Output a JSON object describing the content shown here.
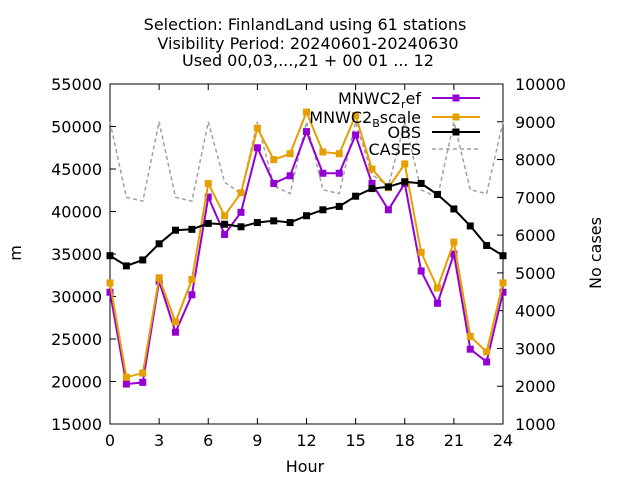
{
  "chart_data": {
    "type": "line",
    "title_lines": [
      "Selection: FinlandLand using    61 stations",
      "Visibility   Period: 20240601-20240630",
      "Used 00,03,...,21 + 00 01 ... 12"
    ],
    "xlabel": "Hour",
    "ylabel": "m",
    "y2label": "No cases",
    "xlim": [
      0,
      24
    ],
    "ylim": [
      15000,
      55000
    ],
    "y2lim": [
      1000,
      10000
    ],
    "x_ticks": [
      0,
      3,
      6,
      9,
      12,
      15,
      18,
      21,
      24
    ],
    "y_ticks": [
      15000,
      20000,
      25000,
      30000,
      35000,
      40000,
      45000,
      50000,
      55000
    ],
    "y2_ticks": [
      1000,
      2000,
      3000,
      4000,
      5000,
      6000,
      7000,
      8000,
      9000,
      10000
    ],
    "grid": false,
    "legend_position": "top-right",
    "x": [
      0,
      1,
      2,
      3,
      4,
      5,
      6,
      7,
      8,
      9,
      10,
      11,
      12,
      13,
      14,
      15,
      16,
      17,
      18,
      19,
      20,
      21,
      22,
      23,
      24
    ],
    "series": [
      {
        "name": "MNWC2_ref",
        "label_main": "MNWC2",
        "label_sub": "r",
        "label_rest": "ef",
        "color": "#9400d3",
        "axis": "y1",
        "dashed": false,
        "values": [
          30500,
          19700,
          19900,
          31800,
          25800,
          30200,
          41700,
          37300,
          39900,
          47500,
          43300,
          44200,
          49400,
          44500,
          44500,
          49000,
          43300,
          40200,
          43300,
          33000,
          29200,
          35000,
          23800,
          22300,
          30500
        ]
      },
      {
        "name": "MNWC2_Bscale",
        "label_main": "MNWC2",
        "label_sub": "B",
        "label_rest": "scale",
        "color": "#e69f00",
        "axis": "y1",
        "dashed": false,
        "values": [
          31600,
          20500,
          21000,
          32200,
          27000,
          32000,
          43300,
          39500,
          42200,
          49800,
          46100,
          46800,
          51700,
          47000,
          46800,
          51300,
          45000,
          42800,
          45600,
          35200,
          31000,
          36400,
          25300,
          23500,
          31600
        ]
      },
      {
        "name": "OBS",
        "label_main": "OBS",
        "color": "#000000",
        "axis": "y1",
        "dashed": false,
        "values": [
          34800,
          33600,
          34300,
          36200,
          37800,
          37900,
          38600,
          38500,
          38200,
          38700,
          38900,
          38700,
          39500,
          40200,
          40600,
          41800,
          42700,
          42900,
          43500,
          43300,
          42000,
          40300,
          38300,
          36000,
          34800
        ]
      },
      {
        "name": "CASES",
        "label_main": "CASES",
        "color": "#a0a0a0",
        "axis": "y2",
        "dashed": true,
        "values": [
          9000,
          7000,
          6900,
          9000,
          7000,
          6900,
          9000,
          7400,
          7100,
          9000,
          7300,
          7100,
          9000,
          7200,
          7100,
          9000,
          7600,
          7300,
          9000,
          7200,
          7000,
          9000,
          7200,
          7100,
          9000
        ]
      }
    ]
  }
}
